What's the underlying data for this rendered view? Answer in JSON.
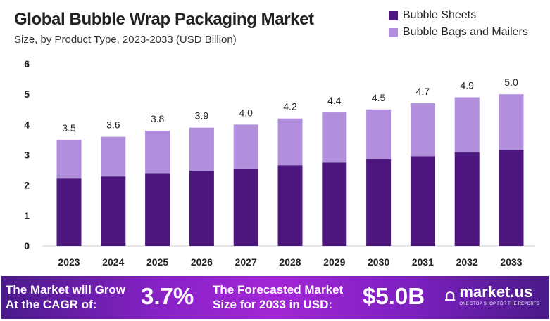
{
  "chart_data": {
    "type": "bar",
    "stacked": true,
    "title": "Global Bubble Wrap Packaging Market",
    "subtitle": "Size, by Product Type, 2023-2033 (USD Billion)",
    "categories": [
      "2023",
      "2024",
      "2025",
      "2026",
      "2027",
      "2028",
      "2029",
      "2030",
      "2031",
      "2032",
      "2033"
    ],
    "series": [
      {
        "name": "Bubble Sheets",
        "color": "#4e1780",
        "values": [
          2.22,
          2.29,
          2.38,
          2.48,
          2.55,
          2.66,
          2.75,
          2.85,
          2.96,
          3.08,
          3.17
        ]
      },
      {
        "name": "Bubble Bags and Mailers",
        "color": "#b28fdc",
        "values": [
          1.28,
          1.31,
          1.42,
          1.42,
          1.45,
          1.54,
          1.65,
          1.65,
          1.74,
          1.82,
          1.83
        ]
      }
    ],
    "totals": [
      "3.5",
      "3.6",
      "3.8",
      "3.9",
      "4.0",
      "4.2",
      "4.4",
      "4.5",
      "4.7",
      "4.9",
      "5.0"
    ],
    "yticks": [
      "0",
      "1",
      "2",
      "3",
      "4",
      "5",
      "6"
    ],
    "ylim": [
      0,
      6
    ],
    "legend": "top-right"
  },
  "banner": {
    "cagr_label_1": "The Market will Grow",
    "cagr_label_2": "At the CAGR of:",
    "cagr_value": "3.7%",
    "forecast_label_1": "The Forecasted Market",
    "forecast_label_2": "Size for 2033 in USD:",
    "forecast_value": "$5.0B",
    "logo_text": "market.us",
    "logo_tagline": "ONE STOP SHOP FOR THE REPORTS"
  }
}
